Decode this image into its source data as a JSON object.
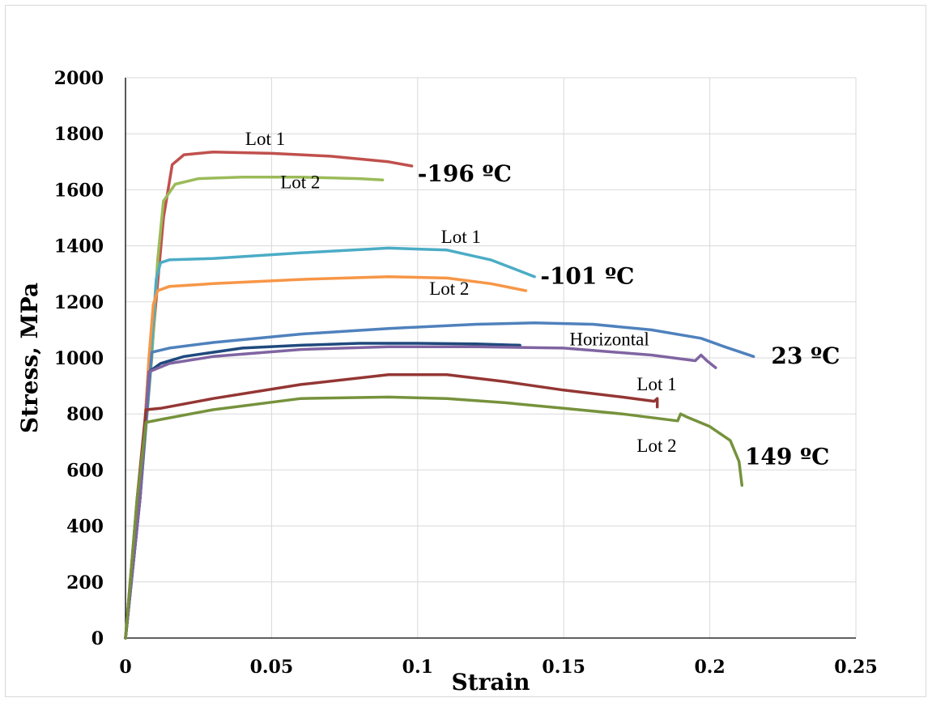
{
  "chart_data": {
    "type": "line",
    "title": "",
    "xlabel": "Strain",
    "ylabel": "Stress, MPa",
    "xlim": [
      0,
      0.25
    ],
    "ylim": [
      0,
      2000
    ],
    "xticks": [
      0,
      0.05,
      0.1,
      0.15,
      0.2,
      0.25
    ],
    "xtick_labels": [
      "0",
      "0.05",
      "0.1",
      "0.15",
      "0.2",
      "0.25"
    ],
    "yticks": [
      0,
      200,
      400,
      600,
      800,
      1000,
      1200,
      1400,
      1600,
      1800,
      2000
    ],
    "ytick_labels": [
      "0",
      "200",
      "400",
      "600",
      "800",
      "1000",
      "1200",
      "1400",
      "1600",
      "1800",
      "2000"
    ],
    "grid": true,
    "legend": "none",
    "series": [
      {
        "color": "#c0504d",
        "x": [
          0,
          0.005,
          0.01,
          0.013,
          0.016,
          0.02,
          0.03,
          0.05,
          0.07,
          0.09,
          0.098
        ],
        "y": [
          0,
          500,
          1150,
          1500,
          1690,
          1725,
          1735,
          1730,
          1720,
          1700,
          1685
        ]
      },
      {
        "color": "#9bbb59",
        "x": [
          0,
          0.005,
          0.009,
          0.011,
          0.013,
          0.017,
          0.025,
          0.04,
          0.06,
          0.08,
          0.088
        ],
        "y": [
          0,
          500,
          1000,
          1350,
          1560,
          1620,
          1640,
          1645,
          1645,
          1640,
          1635
        ]
      },
      {
        "color": "#4bacc6",
        "x": [
          0,
          0.005,
          0.009,
          0.0105,
          0.012,
          0.015,
          0.03,
          0.06,
          0.09,
          0.11,
          0.125,
          0.14
        ],
        "y": [
          0,
          500,
          1050,
          1280,
          1340,
          1350,
          1355,
          1375,
          1392,
          1385,
          1350,
          1290
        ]
      },
      {
        "color": "#f79646",
        "x": [
          0,
          0.005,
          0.008,
          0.0095,
          0.011,
          0.015,
          0.03,
          0.06,
          0.09,
          0.11,
          0.125,
          0.137
        ],
        "y": [
          0,
          500,
          1000,
          1190,
          1240,
          1255,
          1265,
          1280,
          1290,
          1285,
          1265,
          1240
        ]
      },
      {
        "color": "#4f81bd",
        "x": [
          0,
          0.005,
          0.009,
          0.015,
          0.03,
          0.06,
          0.09,
          0.12,
          0.14,
          0.16,
          0.18,
          0.197,
          0.205,
          0.215
        ],
        "y": [
          0,
          500,
          1020,
          1035,
          1055,
          1085,
          1105,
          1120,
          1125,
          1120,
          1100,
          1070,
          1040,
          1005
        ]
      },
      {
        "color": "#1f497d",
        "x": [
          0,
          0.005,
          0.008,
          0.012,
          0.02,
          0.04,
          0.06,
          0.08,
          0.1,
          0.12,
          0.135
        ],
        "y": [
          0,
          500,
          950,
          980,
          1005,
          1035,
          1045,
          1052,
          1052,
          1050,
          1045
        ]
      },
      {
        "color": "#8064a2",
        "x": [
          0,
          0.005,
          0.008,
          0.015,
          0.03,
          0.06,
          0.09,
          0.12,
          0.15,
          0.18,
          0.195,
          0.197,
          0.199,
          0.202
        ],
        "y": [
          0,
          500,
          950,
          980,
          1005,
          1030,
          1040,
          1040,
          1035,
          1010,
          990,
          1010,
          990,
          965
        ]
      },
      {
        "color": "#943634",
        "x": [
          0,
          0.004,
          0.007,
          0.012,
          0.03,
          0.06,
          0.09,
          0.11,
          0.13,
          0.15,
          0.17,
          0.181,
          0.182,
          0.182
        ],
        "y": [
          0,
          500,
          815,
          820,
          855,
          905,
          940,
          940,
          915,
          885,
          860,
          845,
          855,
          825
        ]
      },
      {
        "color": "#76923c",
        "x": [
          0,
          0.004,
          0.007,
          0.012,
          0.03,
          0.06,
          0.09,
          0.11,
          0.13,
          0.15,
          0.17,
          0.189,
          0.19,
          0.192,
          0.2,
          0.207,
          0.21,
          0.211
        ],
        "y": [
          0,
          500,
          770,
          780,
          815,
          855,
          860,
          855,
          840,
          820,
          800,
          775,
          800,
          790,
          755,
          705,
          630,
          545
        ]
      }
    ],
    "annotations": [
      {
        "text": "Lot 1",
        "x": 0.041,
        "y": 1760,
        "kind": "series"
      },
      {
        "text": "Lot 2",
        "x": 0.053,
        "y": 1605,
        "kind": "series"
      },
      {
        "text": "-196 ºC",
        "x": 0.1,
        "y": 1630,
        "kind": "group"
      },
      {
        "text": "Lot 1",
        "x": 0.108,
        "y": 1410,
        "kind": "series"
      },
      {
        "text": "-101 ºC",
        "x": 0.142,
        "y": 1265,
        "kind": "group"
      },
      {
        "text": "Lot 2",
        "x": 0.104,
        "y": 1225,
        "kind": "series"
      },
      {
        "text": "Horizontal",
        "x": 0.152,
        "y": 1045,
        "kind": "series"
      },
      {
        "text": "23 ºC",
        "x": 0.221,
        "y": 980,
        "kind": "group"
      },
      {
        "text": "Lot 1",
        "x": 0.175,
        "y": 885,
        "kind": "series"
      },
      {
        "text": "Lot 2",
        "x": 0.175,
        "y": 665,
        "kind": "series"
      },
      {
        "text": "149 ºC",
        "x": 0.212,
        "y": 620,
        "kind": "group"
      }
    ]
  }
}
